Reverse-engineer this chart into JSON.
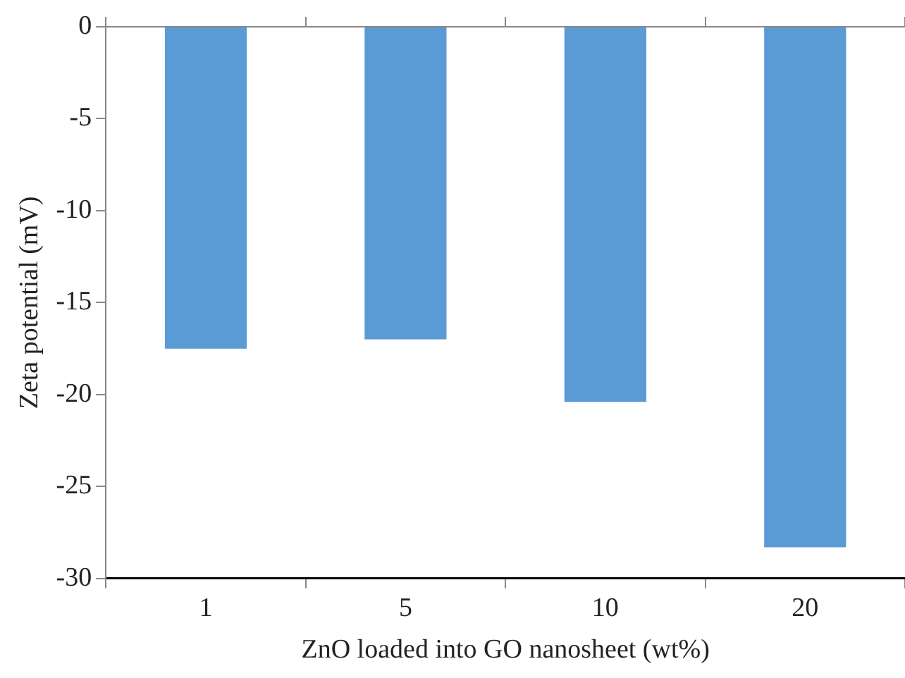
{
  "chart_data": {
    "type": "bar",
    "xlabel": "ZnO loaded into GO nanosheet (wt%)",
    "ylabel": "Zeta potential (mV)",
    "categories": [
      "1",
      "5",
      "10",
      "20"
    ],
    "values": [
      -17.5,
      -17.0,
      -20.4,
      -28.3
    ],
    "color": "#5b9bd5",
    "ylim": [
      -30,
      0
    ],
    "yticks": [
      -30,
      -25,
      -20,
      -15,
      -10,
      -5,
      0
    ],
    "grid": false,
    "legend": false
  }
}
